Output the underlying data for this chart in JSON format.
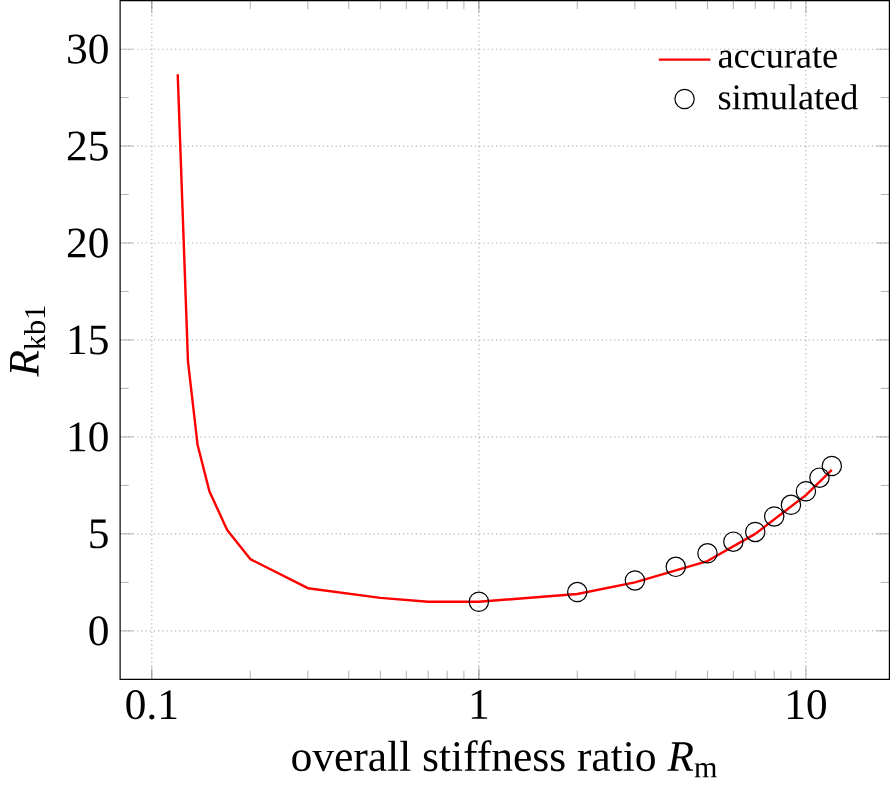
{
  "chart_data": {
    "type": "line",
    "xlabel": "overall stiffness ratio *R*$_{m}$",
    "ylabel": "*R*$_{kb1}$",
    "log": "x",
    "xlim": [
      0.08,
      18
    ],
    "ylim": [
      -2.5,
      32.5
    ],
    "xticks": [
      0.1,
      1,
      10
    ],
    "yticks": [
      0,
      5,
      10,
      15,
      20,
      25,
      30
    ],
    "grid": true,
    "legend": "top right",
    "series": [
      {
        "name": "accurate",
        "color": "#ff0000",
        "marker": "none",
        "x": [
          0.12,
          0.129,
          0.138,
          0.15,
          0.17,
          0.2,
          0.3,
          0.5,
          0.7,
          1,
          2,
          3,
          5,
          7,
          10,
          12
        ],
        "values": [
          28.7,
          13.9,
          9.6,
          7.2,
          5.2,
          3.7,
          2.2,
          1.7,
          1.5,
          1.5,
          1.9,
          2.5,
          3.6,
          5.0,
          7.0,
          8.3
        ]
      },
      {
        "name": "simulated",
        "type": "scatter",
        "color": "#000000",
        "marker": "circle",
        "x": [
          1,
          2,
          3,
          4,
          5,
          6,
          7,
          8,
          9,
          10,
          11,
          12
        ],
        "values": [
          1.5,
          2.0,
          2.6,
          3.3,
          4.0,
          4.6,
          5.1,
          5.9,
          6.5,
          7.2,
          7.9,
          8.5
        ]
      }
    ]
  }
}
